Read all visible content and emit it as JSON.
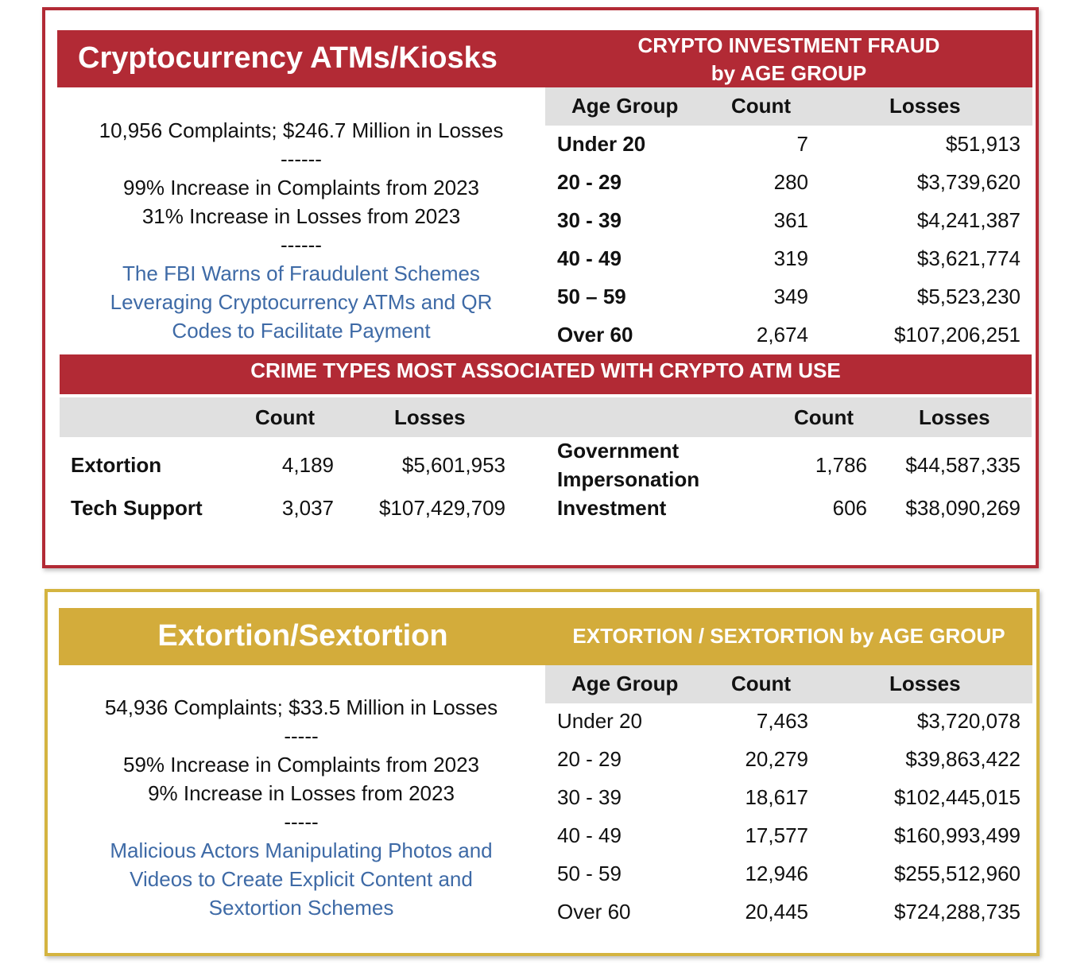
{
  "crypto": {
    "title": "Cryptocurrency ATMs/Kiosks",
    "age_title_line1": "CRYPTO INVESTMENT FRAUD",
    "age_title_line2": "by AGE GROUP",
    "summary": "10,956 Complaints; $246.7 Million in Losses",
    "sep1": "------",
    "increase_complaints": "99% Increase in Complaints from 2023",
    "increase_losses": "31% Increase in Losses from 2023",
    "sep2": "------",
    "link_lines": [
      "The FBI Warns of Fraudulent Schemes",
      "Leveraging Cryptocurrency ATMs and QR",
      "Codes to Facilitate Payment"
    ],
    "age_headers": {
      "group": "Age Group",
      "count": "Count",
      "losses": "Losses"
    },
    "age_rows": [
      {
        "group": "Under 20",
        "count": "7",
        "losses": "$51,913"
      },
      {
        "group": "20 - 29",
        "count": "280",
        "losses": "$3,739,620"
      },
      {
        "group": "30 - 39",
        "count": "361",
        "losses": "$4,241,387"
      },
      {
        "group": "40 - 49",
        "count": "319",
        "losses": "$3,621,774"
      },
      {
        "group": "50 – 59",
        "count": "349",
        "losses": "$5,523,230"
      },
      {
        "group": "Over 60",
        "count": "2,674",
        "losses": "$107,206,251"
      }
    ],
    "crime_title": "CRIME TYPES MOST ASSOCIATED WITH CRYPTO ATM USE",
    "crime_headers": {
      "count": "Count",
      "losses": "Losses"
    },
    "crime_left": [
      {
        "type": "Extortion",
        "count": "4,189",
        "losses": "$5,601,953"
      },
      {
        "type": "Tech Support",
        "count": "3,037",
        "losses": "$107,429,709"
      }
    ],
    "crime_right": [
      {
        "type_line1": "Government",
        "type_line2": "Impersonation",
        "count": "1,786",
        "losses": "$44,587,335"
      },
      {
        "type_line1": "Investment",
        "count": "606",
        "losses": "$38,090,269"
      }
    ]
  },
  "extortion": {
    "title": "Extortion/Sextortion",
    "age_title": "EXTORTION / SEXTORTION by AGE GROUP",
    "summary": "54,936 Complaints; $33.5 Million in Losses",
    "sep1": "-----",
    "increase_complaints": "59% Increase in Complaints from 2023",
    "increase_losses": "9% Increase in Losses from 2023",
    "sep2": "-----",
    "link_lines": [
      "Malicious Actors Manipulating Photos and",
      "Videos to Create Explicit Content and",
      "Sextortion Schemes"
    ],
    "age_headers": {
      "group": "Age Group",
      "count": "Count",
      "losses": "Losses"
    },
    "age_rows": [
      {
        "group": "Under 20",
        "count": "7,463",
        "losses": "$3,720,078"
      },
      {
        "group": "20 - 29",
        "count": "20,279",
        "losses": "$39,863,422"
      },
      {
        "group": "30 - 39",
        "count": "18,617",
        "losses": "$102,445,015"
      },
      {
        "group": "40 - 49",
        "count": "17,577",
        "losses": "$160,993,499"
      },
      {
        "group": "50 - 59",
        "count": "12,946",
        "losses": "$255,512,960"
      },
      {
        "group": "Over 60",
        "count": "20,445",
        "losses": "$724,288,735"
      }
    ]
  },
  "colors": {
    "red": "#b22a35",
    "gold": "#d3ac3b",
    "link_blue": "#3e6aa6",
    "header_gray": "#e0e0e0"
  }
}
